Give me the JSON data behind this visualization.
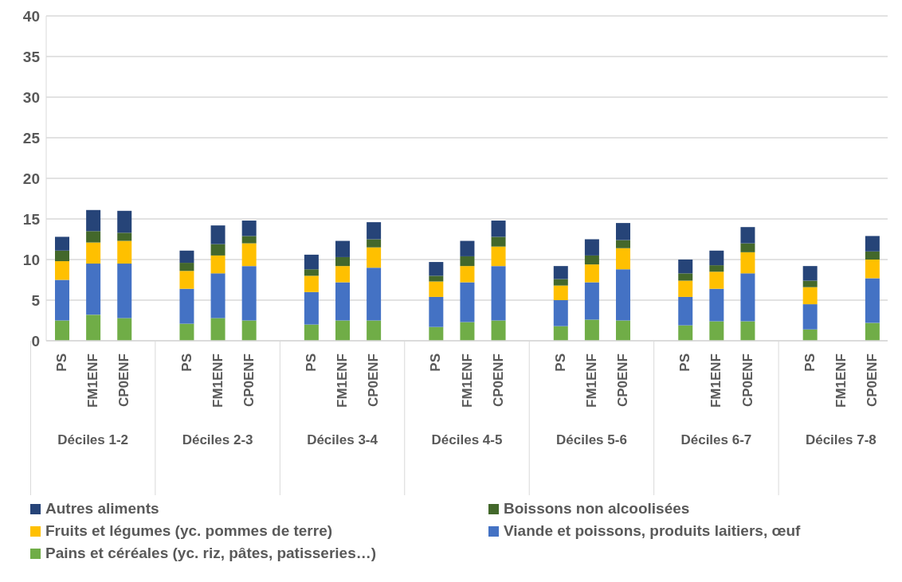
{
  "chart_data": {
    "type": "bar",
    "stacked": true,
    "categories": [
      "PS",
      "FM1ENF",
      "CP0ENF",
      null,
      "PS",
      "FM1ENF",
      "CP0ENF",
      null,
      "PS",
      "FM1ENF",
      "CP0ENF",
      null,
      "PS",
      "FM1ENF",
      "CP0ENF",
      null,
      "PS",
      "FM1ENF",
      "CP0ENF",
      null,
      "PS",
      "FM1ENF",
      "CP0ENF",
      null,
      "PS",
      "FM1ENF",
      "CP0ENF"
    ],
    "annotations": [
      "Déciles 1-2",
      "Déciles 2-3",
      "Déciles 3-4",
      "Déciles 4-5",
      "Déciles 5-6",
      "Déciles 6-7",
      "Déciles 7-8"
    ],
    "series": [
      {
        "name": "Pains et céréales (yc. riz, pâtes, patisseries…)",
        "color": "#70ad47",
        "values": [
          2.5,
          3.2,
          2.8,
          null,
          2.1,
          2.8,
          2.5,
          null,
          2.0,
          2.5,
          2.5,
          null,
          1.7,
          2.3,
          2.5,
          null,
          1.8,
          2.6,
          2.5,
          null,
          1.9,
          2.4,
          2.4,
          null,
          1.4,
          null,
          2.2
        ]
      },
      {
        "name": "Viande et poissons, produits laitiers, œuf",
        "color": "#4472c4",
        "values": [
          5.0,
          6.3,
          6.7,
          null,
          4.3,
          5.5,
          6.7,
          null,
          4.0,
          4.7,
          6.5,
          null,
          3.7,
          4.9,
          6.7,
          null,
          3.2,
          4.6,
          6.3,
          null,
          3.5,
          4.0,
          5.9,
          null,
          3.1,
          null,
          5.5
        ]
      },
      {
        "name": "Fruits et légumes (yc. pommes de terre)",
        "color": "#ffc000",
        "values": [
          2.3,
          2.6,
          2.8,
          null,
          2.2,
          2.2,
          2.8,
          null,
          2.0,
          2.0,
          2.5,
          null,
          1.9,
          2.0,
          2.4,
          null,
          1.8,
          2.2,
          2.6,
          null,
          2.0,
          2.1,
          2.6,
          null,
          2.1,
          null,
          2.3
        ]
      },
      {
        "name": "Boissons non alcoolisées",
        "color": "#43682b",
        "values": [
          1.3,
          1.4,
          1.0,
          null,
          1.0,
          1.4,
          0.9,
          null,
          0.8,
          1.1,
          1.0,
          null,
          0.7,
          1.2,
          1.2,
          null,
          0.8,
          1.1,
          1.0,
          null,
          0.9,
          0.8,
          1.1,
          null,
          0.8,
          null,
          1.0
        ]
      },
      {
        "name": "Autres aliments",
        "color": "#264478",
        "values": [
          1.7,
          2.6,
          2.7,
          null,
          1.5,
          2.3,
          1.9,
          null,
          1.8,
          2.0,
          2.1,
          null,
          1.7,
          1.9,
          2.0,
          null,
          1.6,
          2.0,
          2.1,
          null,
          1.7,
          1.8,
          2.0,
          null,
          1.8,
          null,
          1.9
        ]
      }
    ],
    "ylim": [
      0,
      40
    ],
    "yticks": [
      0,
      5,
      10,
      15,
      20,
      25,
      30,
      35,
      40
    ],
    "grid": "y",
    "legend": "bottom"
  }
}
